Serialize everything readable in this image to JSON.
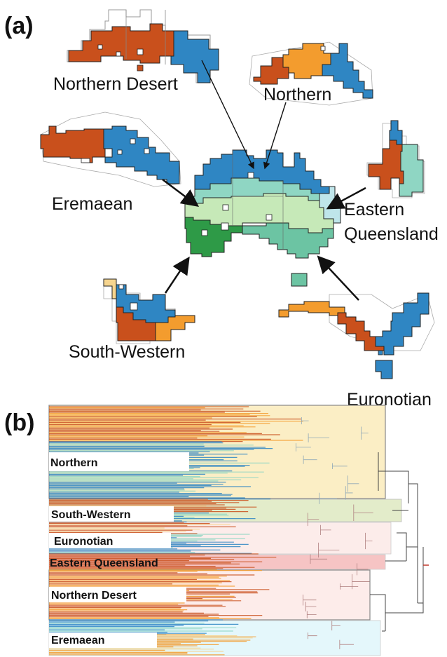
{
  "panel_a": {
    "label": "(a)",
    "regions": {
      "northern_desert": "Northern Desert",
      "northern": "Northern",
      "eremaean": "Eremaean",
      "eastern_queensland_line1": "Eastern",
      "eastern_queensland_line2": "Queensland",
      "south_western": "South-Western",
      "euronotian": "Euronotian"
    }
  },
  "panel_b": {
    "label": "(b)",
    "clades": [
      {
        "label": "Northern",
        "color": "#fbeec5"
      },
      {
        "label": "South-Western",
        "color": "#e3ecca"
      },
      {
        "label": "Euronotian",
        "color": "#fcecea"
      },
      {
        "label": "Eastern Queensland",
        "color": "#f6c4c4"
      },
      {
        "label": "Northern Desert",
        "color": "#fdecea"
      },
      {
        "label": "Eremaean",
        "color": "#e4f7fb"
      }
    ]
  },
  "colors": {
    "orange_red": "#c9501c",
    "orange": "#f39c2e",
    "blue": "#2f86c3",
    "light_yellow": "#f6d58f",
    "teal_dark": "#2e9a47",
    "teal_light": "#8fd6c3",
    "pale_green": "#c6e9b8",
    "pale_blue": "#bfe5ea"
  }
}
